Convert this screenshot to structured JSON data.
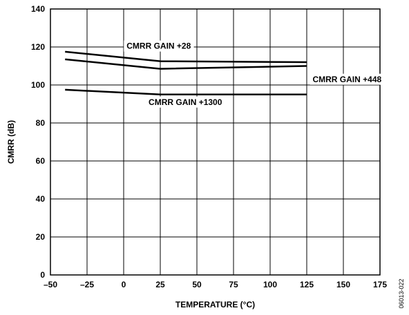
{
  "chart_data": {
    "type": "line",
    "xlabel": "TEMPERATURE (°C)",
    "ylabel": "CMRR (dB)",
    "xlim": [
      -50,
      175
    ],
    "ylim": [
      0,
      140
    ],
    "x_ticks": [
      -50,
      -25,
      0,
      25,
      50,
      75,
      100,
      125,
      150,
      175
    ],
    "x_tick_labels": [
      "–50",
      "–25",
      "0",
      "25",
      "50",
      "75",
      "100",
      "125",
      "150",
      "175"
    ],
    "y_ticks": [
      0,
      20,
      40,
      60,
      80,
      100,
      120,
      140
    ],
    "y_tick_labels": [
      "0",
      "20",
      "40",
      "60",
      "80",
      "100",
      "120",
      "140"
    ],
    "grid": true,
    "series": [
      {
        "name": "CMRR GAIN +28",
        "x": [
          -40,
          25,
          125
        ],
        "values": [
          117.5,
          112.5,
          112
        ]
      },
      {
        "name": "CMRR GAIN +448",
        "x": [
          -40,
          25,
          125
        ],
        "values": [
          113.5,
          108.5,
          110
        ]
      },
      {
        "name": "CMRR GAIN +1300",
        "x": [
          -40,
          25,
          125
        ],
        "values": [
          97.5,
          95,
          95
        ]
      }
    ],
    "annotations": [
      {
        "text": "CMRR GAIN +28",
        "x": 2,
        "y": 120.5
      },
      {
        "text": "CMRR GAIN +448",
        "x": 129,
        "y": 103
      },
      {
        "text": "CMRR GAIN +1300",
        "x": 17,
        "y": 91
      }
    ]
  },
  "figure_id": "06013-022"
}
